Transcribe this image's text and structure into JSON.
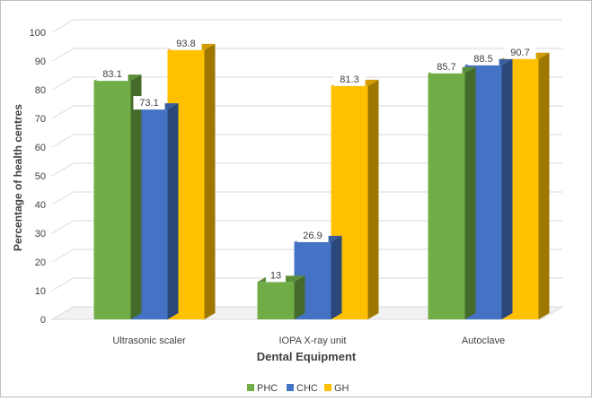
{
  "chart_data": {
    "type": "bar",
    "title": "",
    "xlabel": "Dental Equipment",
    "ylabel": "Percentage of health centres",
    "ylim": [
      0,
      100
    ],
    "yticks": [
      0,
      10,
      20,
      30,
      40,
      50,
      60,
      70,
      80,
      90,
      100
    ],
    "grid": true,
    "legend_position": "bottom",
    "categories": [
      "Ultrasonic scaler",
      "IOPA X-ray unit",
      "Autoclave"
    ],
    "series": [
      {
        "name": "PHC",
        "color": "#70AD47",
        "values": [
          83.1,
          13,
          85.7
        ],
        "labels": [
          "83.1",
          "13",
          "85.7"
        ]
      },
      {
        "name": "CHC",
        "color": "#4472C4",
        "values": [
          73.1,
          26.9,
          88.5
        ],
        "labels": [
          "73.1",
          "26.9",
          "88.5"
        ]
      },
      {
        "name": "GH",
        "color": "#FFC000",
        "values": [
          93.8,
          81.3,
          90.7
        ],
        "labels": [
          "93.8",
          "81.3",
          "90.7"
        ]
      }
    ]
  }
}
